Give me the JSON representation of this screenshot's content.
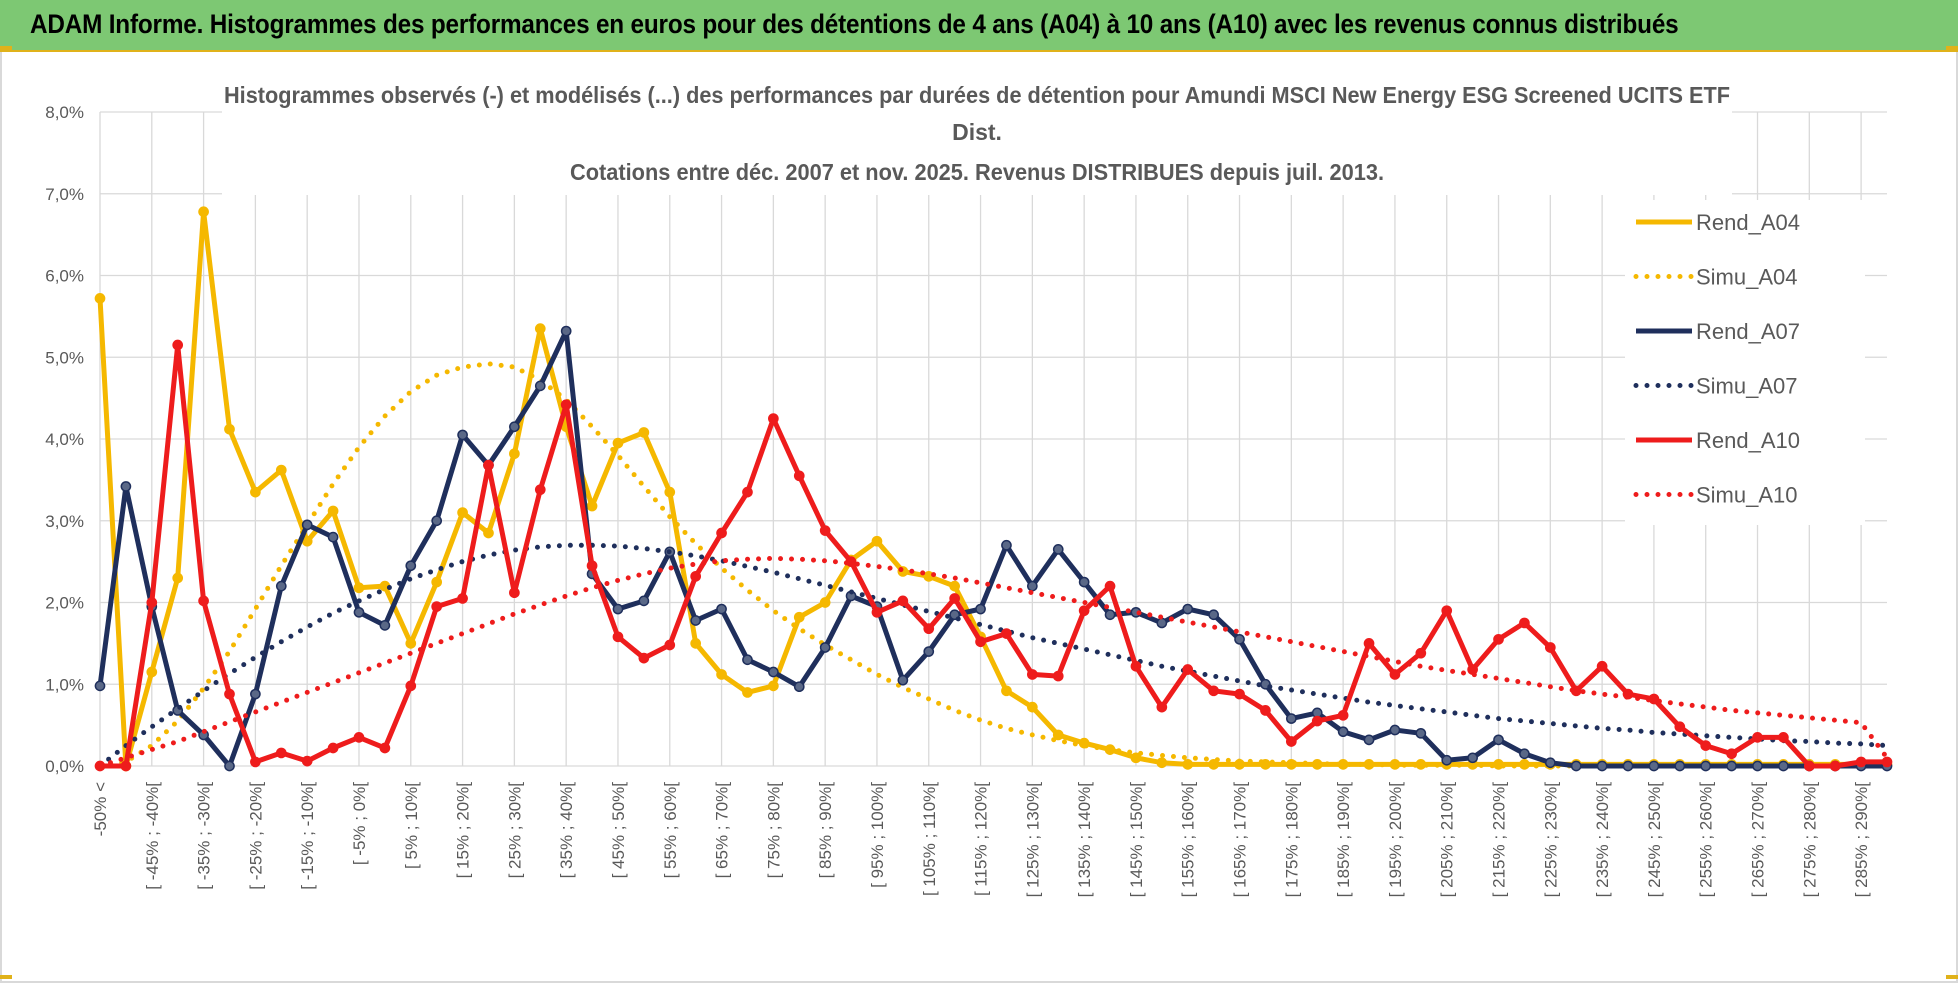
{
  "banner": {
    "title": "ADAM Informe. Histogrammes des performances en euros pour des détentions de 4 ans (A04) à 10 ans (A10) avec les revenus connus distribués"
  },
  "colors": {
    "banner_bg": "#7dc873",
    "accent": "#e0b21a",
    "A04": "#f5b800",
    "A07": "#1f2f5c",
    "A10": "#ee1c1c",
    "grid": "#d9d9d9"
  },
  "chart_data": {
    "type": "line",
    "title_lines": [
      "Histogrammes observés (-) et modélisés (...) des performances par durées de détention pour Amundi MSCI New Energy ESG Screened UCITS ETF",
      "Dist.",
      "Cotations entre déc. 2007 et nov. 2025. Revenus DISTRIBUES depuis juil. 2013."
    ],
    "ylim": [
      0,
      8
    ],
    "y_ticks": [
      "0,0%",
      "1,0%",
      "2,0%",
      "3,0%",
      "4,0%",
      "5,0%",
      "6,0%",
      "7,0%",
      "8,0%"
    ],
    "x_count": 70,
    "x_labels": [
      {
        "i": 0,
        "text": "-50% <"
      },
      {
        "i": 2,
        "text": "[ -45% ; -40%["
      },
      {
        "i": 4,
        "text": "[ -35% ; -30%["
      },
      {
        "i": 6,
        "text": "[ -25% ; -20%["
      },
      {
        "i": 8,
        "text": "[ -15% ; -10%["
      },
      {
        "i": 10,
        "text": "[ -5% ; 0%["
      },
      {
        "i": 12,
        "text": "[ 5% ; 10%["
      },
      {
        "i": 14,
        "text": "[ 15% ; 20%["
      },
      {
        "i": 16,
        "text": "[ 25% ; 30%["
      },
      {
        "i": 18,
        "text": "[ 35% ; 40%["
      },
      {
        "i": 20,
        "text": "[ 45% ; 50%["
      },
      {
        "i": 22,
        "text": "[ 55% ; 60%["
      },
      {
        "i": 24,
        "text": "[ 65% ; 70%["
      },
      {
        "i": 26,
        "text": "[ 75% ; 80%["
      },
      {
        "i": 28,
        "text": "[ 85% ; 90%["
      },
      {
        "i": 30,
        "text": "[ 95% ; 100%["
      },
      {
        "i": 32,
        "text": "[ 105% ; 110%["
      },
      {
        "i": 34,
        "text": "[ 115% ; 120%["
      },
      {
        "i": 36,
        "text": "[ 125% ; 130%["
      },
      {
        "i": 38,
        "text": "[ 135% ; 140%["
      },
      {
        "i": 40,
        "text": "[ 145% ; 150%["
      },
      {
        "i": 42,
        "text": "[ 155% ; 160%["
      },
      {
        "i": 44,
        "text": "[ 165% ; 170%["
      },
      {
        "i": 46,
        "text": "[ 175% ; 180%["
      },
      {
        "i": 48,
        "text": "[ 185% ; 190%["
      },
      {
        "i": 50,
        "text": "[ 195% ; 200%["
      },
      {
        "i": 52,
        "text": "[ 205% ; 210%["
      },
      {
        "i": 54,
        "text": "[ 215% ; 220%["
      },
      {
        "i": 56,
        "text": "[ 225% ; 230%["
      },
      {
        "i": 58,
        "text": "[ 235% ; 240%["
      },
      {
        "i": 60,
        "text": "[ 245% ; 250%["
      },
      {
        "i": 62,
        "text": "[ 255% ; 260%["
      },
      {
        "i": 64,
        "text": "[ 265% ; 270%["
      },
      {
        "i": 66,
        "text": "[ 275% ; 280%["
      },
      {
        "i": 68,
        "text": "[ 285% ; 290%["
      }
    ],
    "series": [
      {
        "name": "Rend_A04",
        "style": "solid",
        "color": "#f5b800",
        "values": [
          5.72,
          0.0,
          1.15,
          2.3,
          6.78,
          4.12,
          3.35,
          3.62,
          2.75,
          3.12,
          2.18,
          2.2,
          1.5,
          2.25,
          3.1,
          2.85,
          3.82,
          5.35,
          4.15,
          3.18,
          3.95,
          4.08,
          3.35,
          1.5,
          1.12,
          0.9,
          0.98,
          1.82,
          2.0,
          2.52,
          2.75,
          2.38,
          2.32,
          2.2,
          1.58,
          0.92,
          0.72,
          0.38,
          0.28,
          0.2,
          0.1,
          0.04,
          0.02,
          0.02,
          0.02,
          0.02,
          0.02,
          0.02,
          0.02,
          0.02,
          0.02,
          0.02,
          0.02,
          0.02,
          0.02,
          0.02,
          0.02,
          0.02,
          0.02,
          0.02,
          0.02,
          0.02,
          0.02,
          0.02,
          0.02,
          0.02,
          0.02,
          0.02,
          0.02,
          0.02
        ]
      },
      {
        "name": "Simu_A04",
        "style": "dotted",
        "color": "#f5b800",
        "values": [
          0.0,
          0.05,
          0.25,
          0.55,
          0.95,
          1.4,
          1.92,
          2.45,
          2.95,
          3.45,
          3.9,
          4.28,
          4.58,
          4.78,
          4.88,
          4.92,
          4.88,
          4.72,
          4.48,
          4.15,
          3.8,
          3.42,
          3.05,
          2.72,
          2.42,
          2.15,
          1.9,
          1.68,
          1.48,
          1.3,
          1.12,
          0.96,
          0.82,
          0.68,
          0.56,
          0.46,
          0.38,
          0.31,
          0.25,
          0.2,
          0.16,
          0.13,
          0.1,
          0.08,
          0.06,
          0.05,
          0.04,
          0.03,
          0.02,
          0.02,
          0.01,
          0.01,
          0.01,
          0.01,
          0.0,
          0.0,
          0.0,
          0.0,
          0.0,
          0.0,
          0.0,
          0.0,
          0.0,
          0.0,
          0.0,
          0.0,
          0.0,
          0.0,
          0.0,
          0.0
        ]
      },
      {
        "name": "Rend_A07",
        "style": "solid",
        "color": "#1f2f5c",
        "values": [
          0.98,
          3.42,
          1.95,
          0.68,
          0.38,
          0.0,
          0.88,
          2.2,
          2.95,
          2.8,
          1.88,
          1.72,
          2.45,
          3.0,
          4.05,
          3.68,
          4.15,
          4.65,
          5.32,
          2.35,
          1.92,
          2.02,
          2.62,
          1.78,
          1.92,
          1.3,
          1.15,
          0.97,
          1.45,
          2.08,
          1.95,
          1.05,
          1.4,
          1.85,
          1.92,
          2.7,
          2.2,
          2.65,
          2.25,
          1.85,
          1.88,
          1.75,
          1.92,
          1.85,
          1.55,
          1.0,
          0.58,
          0.65,
          0.42,
          0.32,
          0.44,
          0.4,
          0.07,
          0.1,
          0.32,
          0.15,
          0.04,
          0.0,
          0.0,
          0.0,
          0.0,
          0.0,
          0.0,
          0.0,
          0.0,
          0.0,
          0.0,
          0.0,
          0.0,
          0.0
        ]
      },
      {
        "name": "Simu_A07",
        "style": "dotted",
        "color": "#1f2f5c",
        "values": [
          0.0,
          0.25,
          0.48,
          0.7,
          0.92,
          1.13,
          1.33,
          1.52,
          1.7,
          1.87,
          2.02,
          2.16,
          2.29,
          2.4,
          2.5,
          2.58,
          2.64,
          2.68,
          2.7,
          2.7,
          2.69,
          2.66,
          2.62,
          2.57,
          2.51,
          2.44,
          2.37,
          2.29,
          2.21,
          2.13,
          2.05,
          1.97,
          1.89,
          1.81,
          1.73,
          1.65,
          1.57,
          1.5,
          1.43,
          1.36,
          1.29,
          1.22,
          1.16,
          1.1,
          1.04,
          0.98,
          0.93,
          0.88,
          0.83,
          0.78,
          0.74,
          0.7,
          0.66,
          0.62,
          0.58,
          0.55,
          0.52,
          0.49,
          0.46,
          0.44,
          0.41,
          0.39,
          0.37,
          0.35,
          0.33,
          0.31,
          0.3,
          0.28,
          0.27,
          0.25
        ]
      },
      {
        "name": "Rend_A10",
        "style": "solid",
        "color": "#ee1c1c",
        "values": [
          0.0,
          0.0,
          2.0,
          5.15,
          2.02,
          0.88,
          0.05,
          0.16,
          0.06,
          0.22,
          0.35,
          0.22,
          0.98,
          1.95,
          2.05,
          3.68,
          2.12,
          3.38,
          4.42,
          2.45,
          1.58,
          1.32,
          1.48,
          2.32,
          2.85,
          3.35,
          4.25,
          3.55,
          2.88,
          2.5,
          1.88,
          2.02,
          1.68,
          2.05,
          1.52,
          1.62,
          1.12,
          1.1,
          1.9,
          2.2,
          1.22,
          0.72,
          1.18,
          0.92,
          0.88,
          0.68,
          0.3,
          0.55,
          0.62,
          1.5,
          1.12,
          1.38,
          1.9,
          1.18,
          1.55,
          1.75,
          1.45,
          0.92,
          1.22,
          0.88,
          0.82,
          0.48,
          0.25,
          0.15,
          0.35,
          0.35,
          0.0,
          0.0,
          0.05,
          0.05
        ]
      },
      {
        "name": "Simu_A10",
        "style": "dotted",
        "color": "#ee1c1c",
        "values": [
          0.0,
          0.1,
          0.2,
          0.3,
          0.42,
          0.54,
          0.66,
          0.78,
          0.9,
          1.02,
          1.14,
          1.26,
          1.38,
          1.5,
          1.62,
          1.74,
          1.86,
          1.97,
          2.08,
          2.18,
          2.27,
          2.35,
          2.42,
          2.47,
          2.51,
          2.53,
          2.54,
          2.53,
          2.51,
          2.48,
          2.44,
          2.4,
          2.35,
          2.3,
          2.24,
          2.18,
          2.12,
          2.06,
          2.0,
          1.94,
          1.88,
          1.82,
          1.76,
          1.7,
          1.64,
          1.58,
          1.52,
          1.46,
          1.4,
          1.34,
          1.28,
          1.22,
          1.17,
          1.12,
          1.07,
          1.02,
          0.97,
          0.92,
          0.88,
          0.84,
          0.8,
          0.76,
          0.72,
          0.68,
          0.65,
          0.62,
          0.59,
          0.56,
          0.53,
          0.1
        ]
      }
    ],
    "legend": [
      "Rend_A04",
      "Simu_A04",
      "Rend_A07",
      "Simu_A07",
      "Rend_A10",
      "Simu_A10"
    ],
    "legend_position": "right"
  }
}
